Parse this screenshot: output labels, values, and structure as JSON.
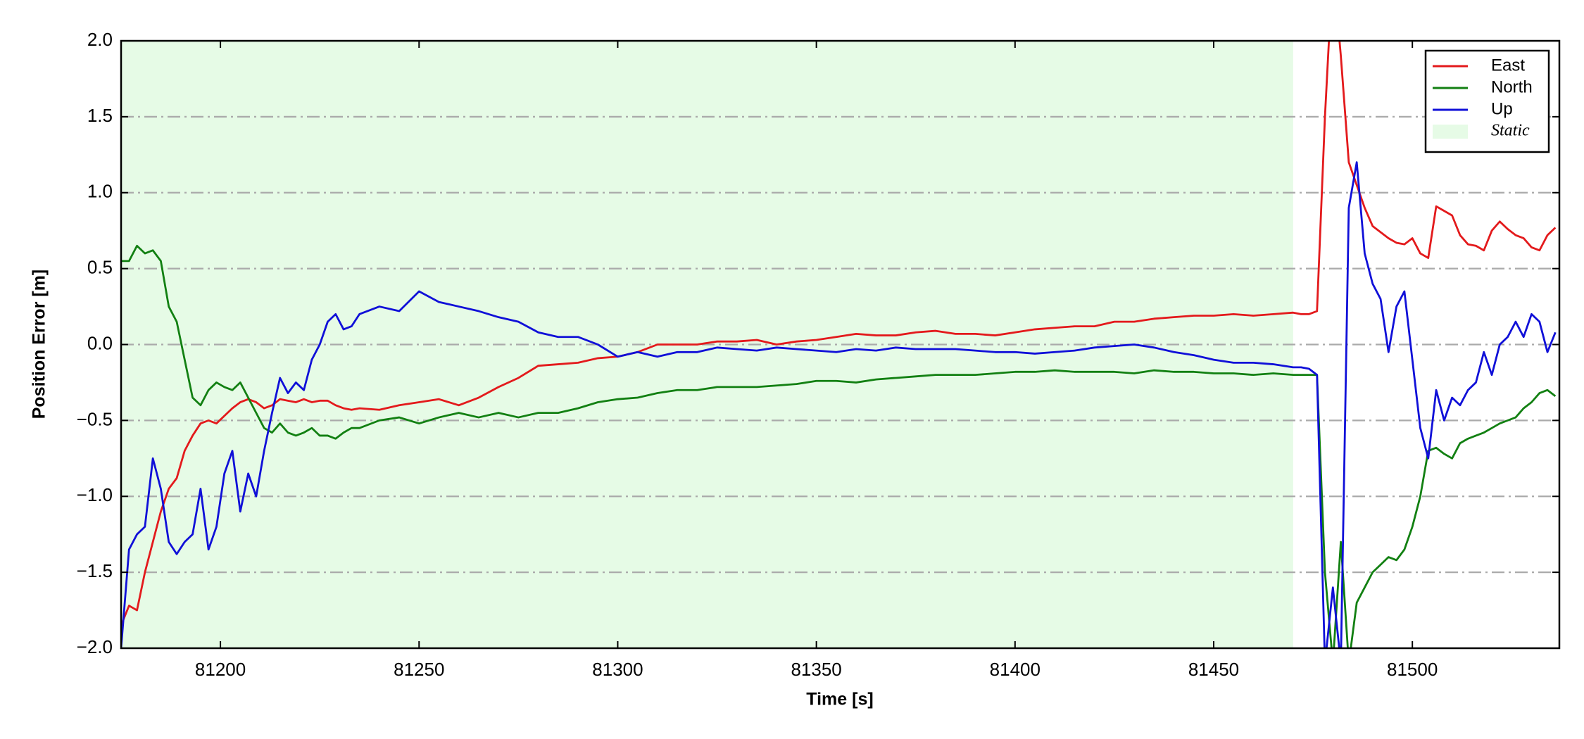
{
  "chart_data": {
    "type": "line",
    "xlabel": "Time [s]",
    "ylabel": "Position Error [m]",
    "xlim": [
      81175,
      81537
    ],
    "ylim": [
      -2.0,
      2.0
    ],
    "xticks": [
      81200,
      81250,
      81300,
      81350,
      81400,
      81450,
      81500
    ],
    "yticks": [
      {
        "value": -2.0,
        "label": "−2.0"
      },
      {
        "value": -1.5,
        "label": "−1.5"
      },
      {
        "value": -1.0,
        "label": "−1.0"
      },
      {
        "value": -0.5,
        "label": "−0.5"
      },
      {
        "value": 0.0,
        "label": "0.0"
      },
      {
        "value": 0.5,
        "label": "0.5"
      },
      {
        "value": 1.0,
        "label": "1.0"
      },
      {
        "value": 1.5,
        "label": "1.5"
      },
      {
        "value": 2.0,
        "label": "2.0"
      }
    ],
    "grid": "dashdot",
    "legend": "upper right",
    "shaded_region": {
      "name": "Static",
      "xmin": 81175,
      "xmax": 81470,
      "color": "#e6fbe6"
    },
    "x": [
      81175,
      81177,
      81179,
      81181,
      81183,
      81185,
      81187,
      81189,
      81191,
      81193,
      81195,
      81197,
      81199,
      81201,
      81203,
      81205,
      81207,
      81209,
      81211,
      81213,
      81215,
      81217,
      81219,
      81221,
      81223,
      81225,
      81227,
      81229,
      81231,
      81233,
      81235,
      81240,
      81245,
      81250,
      81255,
      81260,
      81265,
      81270,
      81275,
      81280,
      81285,
      81290,
      81295,
      81300,
      81305,
      81310,
      81315,
      81320,
      81325,
      81330,
      81335,
      81340,
      81345,
      81350,
      81355,
      81360,
      81365,
      81370,
      81375,
      81380,
      81385,
      81390,
      81395,
      81400,
      81405,
      81410,
      81415,
      81420,
      81425,
      81430,
      81435,
      81440,
      81445,
      81450,
      81455,
      81460,
      81465,
      81470,
      81472,
      81474,
      81476,
      81478,
      81480,
      81482,
      81484,
      81486,
      81488,
      81490,
      81492,
      81494,
      81496,
      81498,
      81500,
      81502,
      81504,
      81506,
      81508,
      81510,
      81512,
      81514,
      81516,
      81518,
      81520,
      81522,
      81524,
      81526,
      81528,
      81530,
      81532,
      81534,
      81536
    ],
    "series": [
      {
        "name": "East",
        "color": "#e31a1c",
        "values": [
          -1.85,
          -1.72,
          -1.75,
          -1.5,
          -1.3,
          -1.1,
          -0.95,
          -0.88,
          -0.7,
          -0.6,
          -0.52,
          -0.5,
          -0.52,
          -0.47,
          -0.42,
          -0.38,
          -0.36,
          -0.38,
          -0.42,
          -0.4,
          -0.36,
          -0.37,
          -0.38,
          -0.36,
          -0.38,
          -0.37,
          -0.37,
          -0.4,
          -0.42,
          -0.43,
          -0.42,
          -0.43,
          -0.4,
          -0.38,
          -0.36,
          -0.4,
          -0.35,
          -0.28,
          -0.22,
          -0.14,
          -0.13,
          -0.12,
          -0.09,
          -0.08,
          -0.05,
          0.0,
          0.0,
          0.0,
          0.02,
          0.02,
          0.03,
          0.0,
          0.02,
          0.03,
          0.05,
          0.07,
          0.06,
          0.06,
          0.08,
          0.09,
          0.07,
          0.07,
          0.06,
          0.08,
          0.1,
          0.11,
          0.12,
          0.12,
          0.15,
          0.15,
          0.17,
          0.18,
          0.19,
          0.19,
          0.2,
          0.19,
          0.2,
          0.21,
          0.2,
          0.2,
          0.22,
          1.5,
          2.5,
          1.9,
          1.2,
          1.05,
          0.9,
          0.78,
          0.74,
          0.7,
          0.67,
          0.66,
          0.7,
          0.6,
          0.57,
          0.91,
          0.88,
          0.85,
          0.72,
          0.66,
          0.65,
          0.62,
          0.75,
          0.81,
          0.76,
          0.72,
          0.7,
          0.64,
          0.62,
          0.72,
          0.77
        ]
      },
      {
        "name": "North",
        "color": "#128012",
        "values": [
          0.55,
          0.55,
          0.65,
          0.6,
          0.62,
          0.55,
          0.25,
          0.15,
          -0.1,
          -0.35,
          -0.4,
          -0.3,
          -0.25,
          -0.28,
          -0.3,
          -0.25,
          -0.35,
          -0.45,
          -0.55,
          -0.58,
          -0.52,
          -0.58,
          -0.6,
          -0.58,
          -0.55,
          -0.6,
          -0.6,
          -0.62,
          -0.58,
          -0.55,
          -0.55,
          -0.5,
          -0.48,
          -0.52,
          -0.48,
          -0.45,
          -0.48,
          -0.45,
          -0.48,
          -0.45,
          -0.45,
          -0.42,
          -0.38,
          -0.36,
          -0.35,
          -0.32,
          -0.3,
          -0.3,
          -0.28,
          -0.28,
          -0.28,
          -0.27,
          -0.26,
          -0.24,
          -0.24,
          -0.25,
          -0.23,
          -0.22,
          -0.21,
          -0.2,
          -0.2,
          -0.2,
          -0.19,
          -0.18,
          -0.18,
          -0.17,
          -0.18,
          -0.18,
          -0.18,
          -0.19,
          -0.17,
          -0.18,
          -0.18,
          -0.19,
          -0.19,
          -0.2,
          -0.19,
          -0.2,
          -0.2,
          -0.2,
          -0.2,
          -1.5,
          -2.1,
          -1.3,
          -2.1,
          -1.7,
          -1.6,
          -1.5,
          -1.45,
          -1.4,
          -1.42,
          -1.35,
          -1.2,
          -1.0,
          -0.7,
          -0.68,
          -0.72,
          -0.75,
          -0.65,
          -0.62,
          -0.6,
          -0.58,
          -0.55,
          -0.52,
          -0.5,
          -0.48,
          -0.42,
          -0.38,
          -0.32,
          -0.3,
          -0.34
        ]
      },
      {
        "name": "Up",
        "color": "#1010d8",
        "values": [
          -2.0,
          -1.35,
          -1.25,
          -1.2,
          -0.75,
          -0.95,
          -1.3,
          -1.38,
          -1.3,
          -1.25,
          -0.95,
          -1.35,
          -1.2,
          -0.85,
          -0.7,
          -1.1,
          -0.85,
          -1.0,
          -0.7,
          -0.45,
          -0.22,
          -0.32,
          -0.25,
          -0.3,
          -0.1,
          0.0,
          0.15,
          0.2,
          0.1,
          0.12,
          0.2,
          0.25,
          0.22,
          0.35,
          0.28,
          0.25,
          0.22,
          0.18,
          0.15,
          0.08,
          0.05,
          0.05,
          0.0,
          -0.08,
          -0.05,
          -0.08,
          -0.05,
          -0.05,
          -0.02,
          -0.03,
          -0.04,
          -0.02,
          -0.03,
          -0.04,
          -0.05,
          -0.03,
          -0.04,
          -0.02,
          -0.03,
          -0.03,
          -0.03,
          -0.04,
          -0.05,
          -0.05,
          -0.06,
          -0.05,
          -0.04,
          -0.02,
          -0.01,
          0.0,
          -0.02,
          -0.05,
          -0.07,
          -0.1,
          -0.12,
          -0.12,
          -0.13,
          -0.15,
          -0.15,
          -0.16,
          -0.2,
          -2.1,
          -1.6,
          -2.1,
          0.9,
          1.2,
          0.6,
          0.4,
          0.3,
          -0.05,
          0.25,
          0.35,
          -0.1,
          -0.55,
          -0.75,
          -0.3,
          -0.5,
          -0.35,
          -0.4,
          -0.3,
          -0.25,
          -0.05,
          -0.2,
          0.0,
          0.05,
          0.15,
          0.05,
          0.2,
          0.15,
          -0.05,
          0.08
        ]
      }
    ]
  }
}
